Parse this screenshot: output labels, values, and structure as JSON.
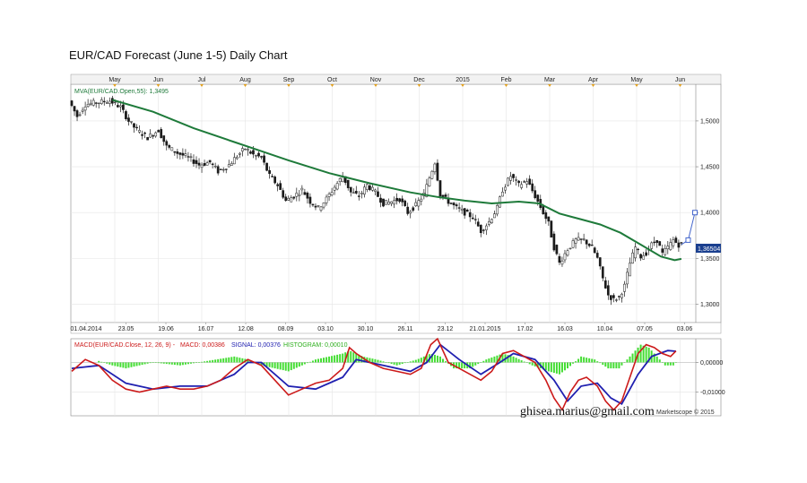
{
  "title": "EUR/CAD Forecast (June 1-5) Daily Chart",
  "watermark": "ghisea.marius@gmail.com",
  "copyright": "Marketscope © 2015",
  "colors": {
    "candle": "#1a1a1a",
    "candle_up": "#1a1a1a",
    "mva": "#1e7a3a",
    "macd": "#cc1a1a",
    "signal": "#2020b0",
    "histogram": "#44dd33",
    "projection": "#4466cc",
    "grid": "#e4e4e4",
    "axis": "#555555",
    "current_box": "#1a3f8f"
  },
  "chart_data": [
    {
      "type": "candlestick",
      "pair": "EUR/CAD",
      "legend": "MVA(EUR/CAD.Open,55): 1,3495",
      "current_price_label": "1,36504",
      "month_labels": [
        "May",
        "Jun",
        "Jul",
        "Aug",
        "Sep",
        "Oct",
        "Nov",
        "Dec",
        "2015",
        "Feb",
        "Mar",
        "Apr",
        "May",
        "Jun"
      ],
      "date_labels": [
        "01.04.2014",
        "23.05",
        "19.06",
        "16.07",
        "12.08",
        "08.09",
        "03.10",
        "30.10",
        "26.11",
        "23.12",
        "21.01.2015",
        "17.02",
        "16.03",
        "10.04",
        "07.05",
        "03.06"
      ],
      "y_ticks": [
        "1,5000",
        "1,4500",
        "1,4000",
        "1,3500",
        "1,3000"
      ],
      "y_tick_values": [
        1.5,
        1.45,
        1.4,
        1.35,
        1.3
      ],
      "ylim": [
        1.28,
        1.54
      ],
      "grid": true,
      "price_path": [
        [
          0,
          1.522
        ],
        [
          6,
          1.505
        ],
        [
          12,
          1.518
        ],
        [
          20,
          1.52
        ],
        [
          30,
          1.522
        ],
        [
          38,
          1.515
        ],
        [
          44,
          1.5
        ],
        [
          50,
          1.49
        ],
        [
          58,
          1.482
        ],
        [
          66,
          1.49
        ],
        [
          72,
          1.472
        ],
        [
          80,
          1.465
        ],
        [
          88,
          1.46
        ],
        [
          96,
          1.452
        ],
        [
          104,
          1.455
        ],
        [
          110,
          1.445
        ],
        [
          118,
          1.452
        ],
        [
          124,
          1.462
        ],
        [
          130,
          1.47
        ],
        [
          136,
          1.463
        ],
        [
          142,
          1.46
        ],
        [
          148,
          1.44
        ],
        [
          154,
          1.43
        ],
        [
          160,
          1.413
        ],
        [
          166,
          1.418
        ],
        [
          172,
          1.425
        ],
        [
          178,
          1.412
        ],
        [
          184,
          1.405
        ],
        [
          190,
          1.415
        ],
        [
          196,
          1.428
        ],
        [
          202,
          1.44
        ],
        [
          208,
          1.422
        ],
        [
          214,
          1.418
        ],
        [
          220,
          1.43
        ],
        [
          226,
          1.422
        ],
        [
          232,
          1.41
        ],
        [
          238,
          1.412
        ],
        [
          244,
          1.415
        ],
        [
          250,
          1.4
        ],
        [
          256,
          1.408
        ],
        [
          262,
          1.42
        ],
        [
          266,
          1.438
        ],
        [
          270,
          1.455
        ],
        [
          274,
          1.42
        ],
        [
          280,
          1.412
        ],
        [
          286,
          1.405
        ],
        [
          292,
          1.4
        ],
        [
          298,
          1.395
        ],
        [
          304,
          1.38
        ],
        [
          310,
          1.39
        ],
        [
          316,
          1.405
        ],
        [
          320,
          1.425
        ],
        [
          326,
          1.44
        ],
        [
          332,
          1.43
        ],
        [
          338,
          1.435
        ],
        [
          344,
          1.418
        ],
        [
          350,
          1.4
        ],
        [
          354,
          1.388
        ],
        [
          358,
          1.362
        ],
        [
          362,
          1.345
        ],
        [
          368,
          1.36
        ],
        [
          374,
          1.37
        ],
        [
          380,
          1.37
        ],
        [
          386,
          1.362
        ],
        [
          390,
          1.35
        ],
        [
          394,
          1.328
        ],
        [
          398,
          1.31
        ],
        [
          402,
          1.305
        ],
        [
          406,
          1.308
        ],
        [
          410,
          1.32
        ],
        [
          414,
          1.345
        ],
        [
          418,
          1.362
        ],
        [
          422,
          1.352
        ],
        [
          426,
          1.356
        ],
        [
          430,
          1.365
        ],
        [
          434,
          1.37
        ],
        [
          438,
          1.355
        ],
        [
          442,
          1.362
        ],
        [
          446,
          1.37
        ],
        [
          450,
          1.365
        ]
      ],
      "mva_path": [
        [
          30,
          1.523
        ],
        [
          60,
          1.51
        ],
        [
          90,
          1.492
        ],
        [
          120,
          1.477
        ],
        [
          140,
          1.467
        ],
        [
          160,
          1.457
        ],
        [
          190,
          1.443
        ],
        [
          220,
          1.432
        ],
        [
          250,
          1.422
        ],
        [
          270,
          1.417
        ],
        [
          290,
          1.413
        ],
        [
          310,
          1.41
        ],
        [
          330,
          1.412
        ],
        [
          345,
          1.41
        ],
        [
          360,
          1.399
        ],
        [
          375,
          1.393
        ],
        [
          390,
          1.387
        ],
        [
          405,
          1.378
        ],
        [
          420,
          1.365
        ],
        [
          435,
          1.352
        ],
        [
          445,
          1.348
        ],
        [
          450,
          1.3495
        ]
      ],
      "projection": [
        [
          450,
          1.365
        ],
        [
          455,
          1.37
        ],
        [
          460,
          1.4
        ]
      ]
    },
    {
      "type": "macd",
      "legend_prefix": "MACD(EUR/CAD.Close, 12, 26, 9) - ",
      "macd_label": "MACD: 0,00386",
      "signal_label": "SIGNAL: 0,00376",
      "histogram_label": "HISTOGRAM: 0,00010",
      "y_ticks": [
        "0,00000",
        "-0,01000"
      ],
      "y_tick_values": [
        0,
        -0.01
      ],
      "ylim": [
        -0.018,
        0.008
      ],
      "macd": [
        [
          0,
          -0.003
        ],
        [
          10,
          0.001
        ],
        [
          20,
          -0.001
        ],
        [
          30,
          -0.006
        ],
        [
          40,
          -0.009
        ],
        [
          50,
          -0.01
        ],
        [
          60,
          -0.009
        ],
        [
          70,
          -0.008
        ],
        [
          80,
          -0.009
        ],
        [
          90,
          -0.009
        ],
        [
          100,
          -0.008
        ],
        [
          110,
          -0.006
        ],
        [
          120,
          -0.002
        ],
        [
          130,
          0.001
        ],
        [
          140,
          -0.001
        ],
        [
          150,
          -0.006
        ],
        [
          160,
          -0.011
        ],
        [
          170,
          -0.009
        ],
        [
          180,
          -0.007
        ],
        [
          190,
          -0.006
        ],
        [
          200,
          -0.002
        ],
        [
          205,
          0.005
        ],
        [
          210,
          0.003
        ],
        [
          220,
          0.0
        ],
        [
          230,
          -0.002
        ],
        [
          240,
          -0.003
        ],
        [
          250,
          -0.004
        ],
        [
          258,
          -0.002
        ],
        [
          265,
          0.006
        ],
        [
          270,
          0.008
        ],
        [
          278,
          0.0
        ],
        [
          286,
          -0.002
        ],
        [
          294,
          -0.004
        ],
        [
          302,
          -0.006
        ],
        [
          310,
          -0.003
        ],
        [
          318,
          0.003
        ],
        [
          326,
          0.004
        ],
        [
          334,
          0.002
        ],
        [
          342,
          0.0
        ],
        [
          350,
          -0.006
        ],
        [
          356,
          -0.012
        ],
        [
          362,
          -0.016
        ],
        [
          368,
          -0.01
        ],
        [
          374,
          -0.006
        ],
        [
          380,
          -0.005
        ],
        [
          388,
          -0.008
        ],
        [
          394,
          -0.013
        ],
        [
          400,
          -0.016
        ],
        [
          406,
          -0.013
        ],
        [
          412,
          -0.005
        ],
        [
          418,
          0.003
        ],
        [
          424,
          0.006
        ],
        [
          430,
          0.005
        ],
        [
          436,
          0.003
        ],
        [
          442,
          0.002
        ],
        [
          446,
          0.00386
        ]
      ],
      "signal": [
        [
          0,
          -0.002
        ],
        [
          20,
          -0.001
        ],
        [
          40,
          -0.007
        ],
        [
          60,
          -0.009
        ],
        [
          80,
          -0.008
        ],
        [
          100,
          -0.008
        ],
        [
          120,
          -0.004
        ],
        [
          130,
          0.0
        ],
        [
          140,
          0.0
        ],
        [
          160,
          -0.008
        ],
        [
          180,
          -0.009
        ],
        [
          200,
          -0.005
        ],
        [
          210,
          0.001
        ],
        [
          230,
          -0.001
        ],
        [
          250,
          -0.003
        ],
        [
          262,
          0.0
        ],
        [
          272,
          0.006
        ],
        [
          286,
          0.001
        ],
        [
          302,
          -0.004
        ],
        [
          316,
          0.0
        ],
        [
          326,
          0.003
        ],
        [
          342,
          0.001
        ],
        [
          356,
          -0.006
        ],
        [
          366,
          -0.013
        ],
        [
          376,
          -0.008
        ],
        [
          388,
          -0.007
        ],
        [
          398,
          -0.012
        ],
        [
          406,
          -0.014
        ],
        [
          418,
          -0.004
        ],
        [
          428,
          0.002
        ],
        [
          440,
          0.004
        ],
        [
          446,
          0.00376
        ]
      ],
      "histogram": [
        [
          20,
          0.0005
        ],
        [
          30,
          -0.001
        ],
        [
          40,
          -0.002
        ],
        [
          50,
          -0.001
        ],
        [
          60,
          0.0
        ],
        [
          80,
          -0.001
        ],
        [
          100,
          0.0005
        ],
        [
          120,
          0.002
        ],
        [
          130,
          0.001
        ],
        [
          140,
          -0.001
        ],
        [
          150,
          -0.002
        ],
        [
          160,
          -0.003
        ],
        [
          170,
          -0.001
        ],
        [
          180,
          0.001
        ],
        [
          190,
          0.002
        ],
        [
          200,
          0.003
        ],
        [
          205,
          0.004
        ],
        [
          215,
          0.002
        ],
        [
          225,
          0.001
        ],
        [
          240,
          -0.001
        ],
        [
          255,
          0.001
        ],
        [
          265,
          0.003
        ],
        [
          272,
          0.002
        ],
        [
          282,
          -0.002
        ],
        [
          294,
          -0.002
        ],
        [
          306,
          0.001
        ],
        [
          318,
          0.003
        ],
        [
          326,
          0.002
        ],
        [
          340,
          -0.001
        ],
        [
          352,
          -0.003
        ],
        [
          360,
          -0.004
        ],
        [
          366,
          -0.002
        ],
        [
          376,
          0.002
        ],
        [
          386,
          0.001
        ],
        [
          396,
          -0.002
        ],
        [
          404,
          -0.002
        ],
        [
          414,
          0.003
        ],
        [
          420,
          0.006
        ],
        [
          426,
          0.005
        ],
        [
          432,
          0.002
        ],
        [
          438,
          -0.001
        ],
        [
          444,
          -0.001
        ],
        [
          446,
          0.0001
        ]
      ]
    }
  ]
}
